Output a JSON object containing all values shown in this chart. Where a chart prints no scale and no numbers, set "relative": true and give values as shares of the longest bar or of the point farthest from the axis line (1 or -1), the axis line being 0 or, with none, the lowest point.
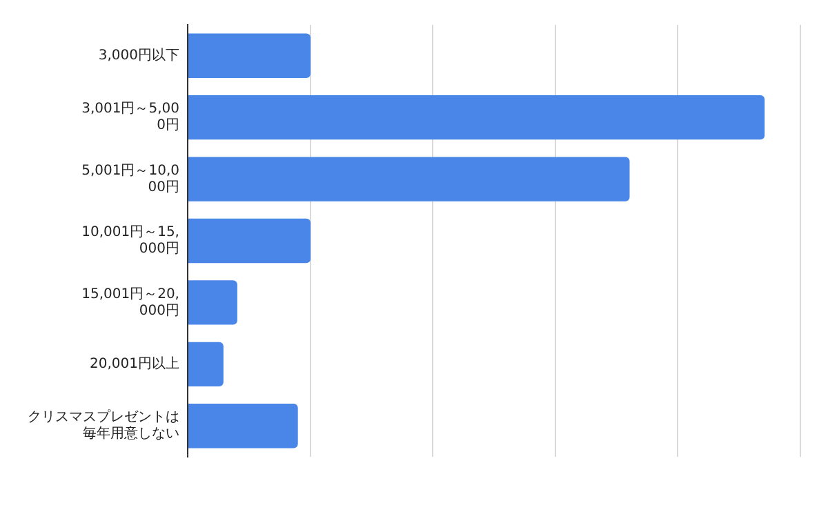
{
  "chart_data": {
    "type": "bar",
    "orientation": "horizontal",
    "relative": true,
    "grid": "x",
    "legend": false,
    "categories": [
      "3,000円以下",
      "3,001円～5,000円",
      "5,001円～10,000円",
      "10,001円～15,000円",
      "15,001円～20,000円",
      "20,001円以上",
      "クリスマスプレゼントは毎年用意しない"
    ],
    "series": [
      {
        "color": "#4a86e8",
        "values": [
          0.213,
          1,
          0.766,
          0.213,
          0.086,
          0.062,
          0.191
        ]
      }
    ]
  }
}
